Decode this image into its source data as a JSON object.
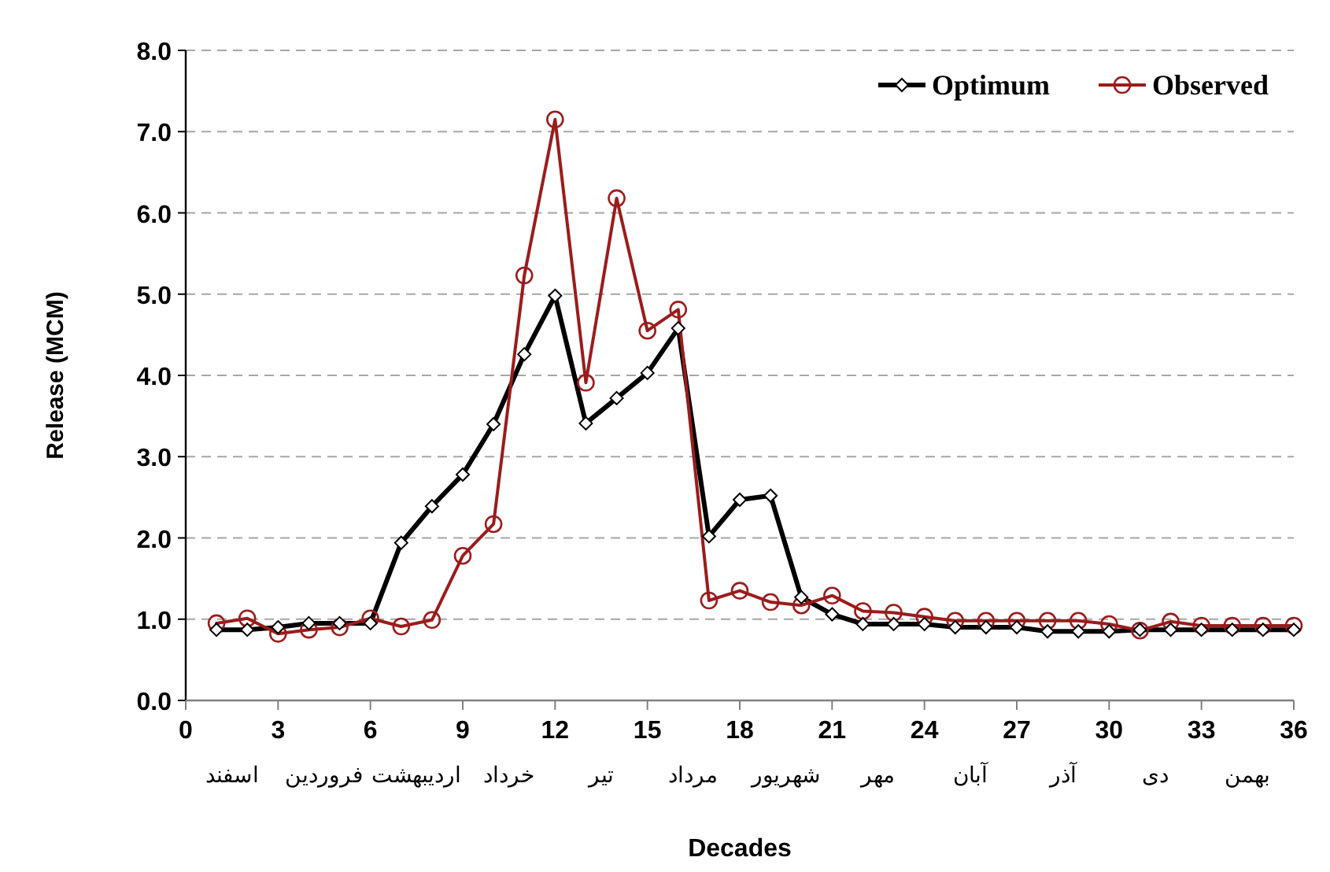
{
  "chart_data": {
    "type": "line",
    "xlabel": "Decades",
    "ylabel": "Release (MCM)",
    "x": [
      1,
      2,
      3,
      4,
      5,
      6,
      7,
      8,
      9,
      10,
      11,
      12,
      13,
      14,
      15,
      16,
      17,
      18,
      19,
      20,
      21,
      22,
      23,
      24,
      25,
      26,
      27,
      28,
      29,
      30,
      31,
      32,
      33,
      34,
      35,
      36
    ],
    "series": [
      {
        "name": "Optimum",
        "color": "#000000",
        "marker": "diamond",
        "values": [
          0.87,
          0.87,
          0.9,
          0.95,
          0.95,
          0.95,
          1.94,
          2.39,
          2.78,
          3.4,
          4.26,
          4.98,
          3.41,
          3.72,
          4.03,
          4.58,
          2.02,
          2.47,
          2.52,
          1.27,
          1.06,
          0.94,
          0.94,
          0.94,
          0.9,
          0.9,
          0.9,
          0.85,
          0.85,
          0.85,
          0.87,
          0.87,
          0.87,
          0.87,
          0.87,
          0.87
        ]
      },
      {
        "name": "Observed",
        "color": "#9b1c1c",
        "marker": "circle",
        "values": [
          0.95,
          1.01,
          0.82,
          0.87,
          0.9,
          1.01,
          0.91,
          0.99,
          1.78,
          2.17,
          5.23,
          7.15,
          3.91,
          6.18,
          4.55,
          4.81,
          1.23,
          1.35,
          1.21,
          1.17,
          1.29,
          1.1,
          1.08,
          1.03,
          0.98,
          0.98,
          0.98,
          0.98,
          0.98,
          0.94,
          0.86,
          0.97,
          0.92,
          0.92,
          0.92,
          0.92
        ]
      }
    ],
    "xlim": [
      0,
      36
    ],
    "xticks": [
      0,
      3,
      6,
      9,
      12,
      15,
      18,
      21,
      24,
      27,
      30,
      33,
      36
    ],
    "ylim": [
      0,
      8
    ],
    "yticks": [
      {
        "value": 0,
        "label": "0.0"
      },
      {
        "value": 1,
        "label": "1.0"
      },
      {
        "value": 2,
        "label": "2.0"
      },
      {
        "value": 3,
        "label": "3.0"
      },
      {
        "value": 4,
        "label": "4.0"
      },
      {
        "value": 5,
        "label": "5.0"
      },
      {
        "value": 6,
        "label": "6.0"
      },
      {
        "value": 7,
        "label": "7.0"
      },
      {
        "value": 8,
        "label": "8.0"
      }
    ],
    "grid": "y",
    "legend": "top right",
    "line_style": "solid",
    "annotations": [
      "اسفند",
      "فروردین",
      "اردیبهشت",
      "خرداد",
      "تیر",
      "مرداد",
      "شهریور",
      "مهر",
      "آبان",
      "آذر",
      "دی",
      "بهمن"
    ]
  }
}
